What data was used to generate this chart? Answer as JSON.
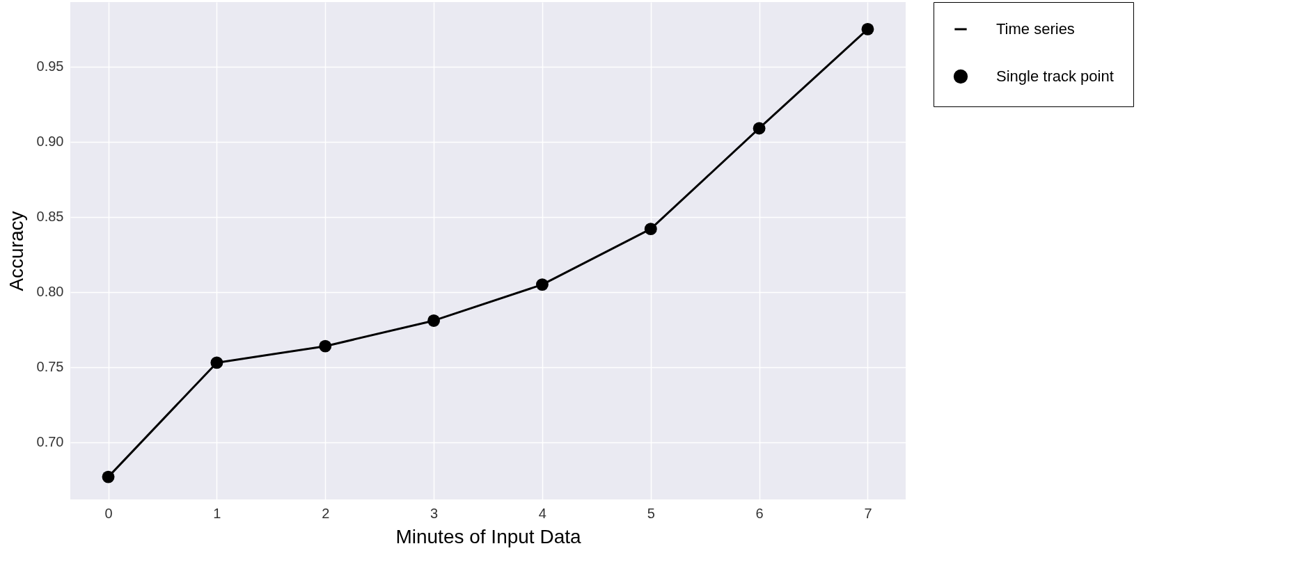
{
  "chart_data": {
    "type": "line",
    "xlabel": "Minutes of Input Data",
    "ylabel": "Accuracy",
    "x": [
      0,
      1,
      2,
      3,
      4,
      5,
      6,
      7
    ],
    "series": [
      {
        "name": "Time series",
        "type": "line",
        "color": "#000000",
        "marker": "none",
        "values": [
          0.677,
          0.753,
          0.764,
          0.781,
          0.805,
          0.842,
          0.909,
          0.975
        ]
      },
      {
        "name": "Single track point",
        "type": "scatter",
        "color": "#000000",
        "marker": "circle",
        "values": [
          0.677,
          0.753,
          0.764,
          0.781,
          0.805,
          0.842,
          0.909,
          0.975
        ]
      }
    ],
    "xlim": [
      -0.35,
      7.35
    ],
    "xticks": [
      0,
      1,
      2,
      3,
      4,
      5,
      6,
      7
    ],
    "ylim": [
      0.662,
      0.993
    ],
    "yticks": [
      {
        "value": 0.7,
        "label": "0.70"
      },
      0.75,
      {
        "value": 0.8,
        "label": "0.80"
      },
      0.85,
      {
        "value": 0.9,
        "label": "0.90"
      },
      0.95
    ],
    "grid": true,
    "legend": "right"
  }
}
